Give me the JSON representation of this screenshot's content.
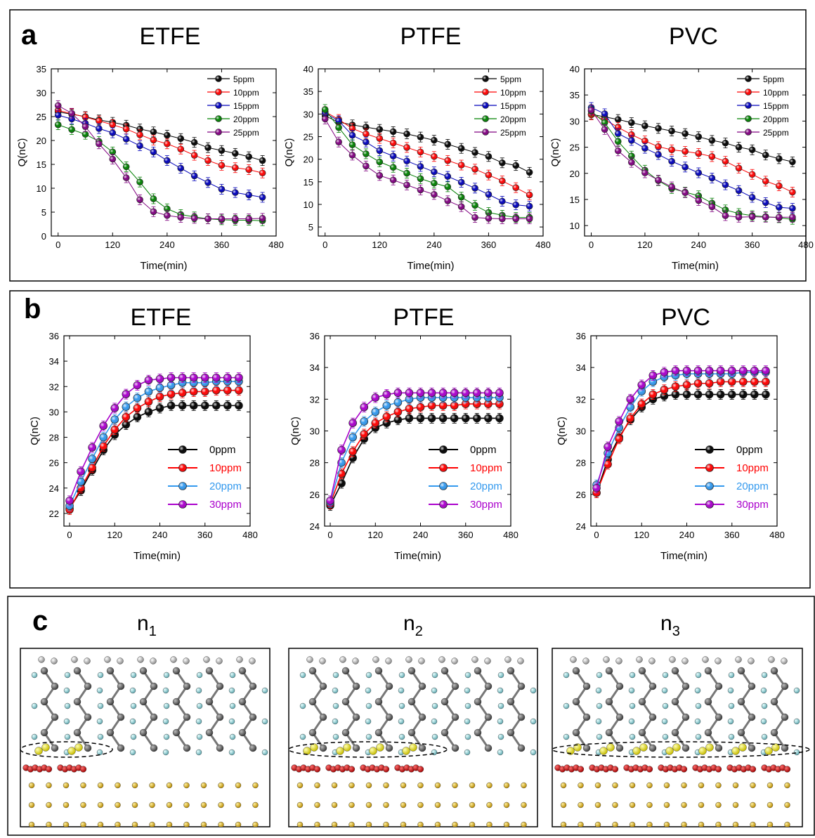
{
  "figure": {
    "panel_labels": [
      "a",
      "b",
      "c"
    ],
    "panel_c_titles": [
      {
        "base": "n",
        "sub": "1"
      },
      {
        "base": "n",
        "sub": "2"
      },
      {
        "base": "n",
        "sub": "3"
      }
    ],
    "panel_c_dashed_groups": [
      2,
      4,
      7
    ]
  },
  "chart_data": [
    {
      "type": "line",
      "panel": "a",
      "title": "ETFE",
      "xlabel": "Time(min)",
      "ylabel": "Q(nC)",
      "xlim": [
        -15,
        480
      ],
      "ylim": [
        0,
        35
      ],
      "xticks": [
        0,
        120,
        240,
        360,
        480
      ],
      "yticks": [
        0,
        5,
        10,
        15,
        20,
        25,
        30,
        35
      ],
      "legend_position": "top-right",
      "x": [
        0,
        30,
        60,
        90,
        120,
        150,
        180,
        210,
        240,
        270,
        300,
        330,
        360,
        390,
        420,
        450
      ],
      "series": [
        {
          "name": "5ppm",
          "color": "#000000",
          "values": [
            26,
            25.5,
            25,
            24.3,
            23.8,
            23.2,
            22.4,
            21.8,
            21.1,
            20.4,
            19.6,
            18.5,
            17.9,
            17.3,
            16.6,
            15.8
          ]
        },
        {
          "name": "10ppm",
          "color": "#ff0000",
          "values": [
            26.3,
            25.6,
            24.9,
            24.1,
            23.3,
            22.4,
            21.2,
            20.1,
            19.3,
            18.2,
            16.9,
            15.8,
            14.8,
            14.3,
            13.9,
            13.2
          ]
        },
        {
          "name": "15ppm",
          "color": "#0000bb",
          "values": [
            25.3,
            24.5,
            23.6,
            22.5,
            21.6,
            20.3,
            18.9,
            17.6,
            15.8,
            14.2,
            12.6,
            11.2,
            9.8,
            9.1,
            8.6,
            8.1
          ]
        },
        {
          "name": "20ppm",
          "color": "#008000",
          "values": [
            23.3,
            22.3,
            21.3,
            19.8,
            17.6,
            14.5,
            11.3,
            7.8,
            5.7,
            4.5,
            4.0,
            3.6,
            3.4,
            3.3,
            3.3,
            3.2
          ]
        },
        {
          "name": "25ppm",
          "color": "#800080",
          "values": [
            27.3,
            25.7,
            22.9,
            19.3,
            16.1,
            12.2,
            7.6,
            5.1,
            4.3,
            3.9,
            3.7,
            3.6,
            3.6,
            3.6,
            3.6,
            3.7
          ]
        }
      ]
    },
    {
      "type": "line",
      "panel": "a",
      "title": "PTFE",
      "xlabel": "Time(min)",
      "ylabel": "Q(nC)",
      "xlim": [
        -15,
        480
      ],
      "ylim": [
        3,
        40
      ],
      "xticks": [
        0,
        120,
        240,
        360,
        480
      ],
      "yticks": [
        5,
        10,
        15,
        20,
        25,
        30,
        35,
        40
      ],
      "legend_position": "top-right",
      "x": [
        0,
        30,
        60,
        90,
        120,
        150,
        180,
        210,
        240,
        270,
        300,
        330,
        360,
        390,
        420,
        450
      ],
      "series": [
        {
          "name": "5ppm",
          "color": "#000000",
          "values": [
            29.6,
            28.2,
            27.6,
            27.1,
            26.6,
            26.1,
            25.6,
            24.9,
            24.2,
            23.3,
            22.4,
            21.5,
            20.6,
            19.2,
            18.6,
            17.1
          ]
        },
        {
          "name": "10ppm",
          "color": "#ff0000",
          "values": [
            30.5,
            28.8,
            26.8,
            25.6,
            24.6,
            23.6,
            22.6,
            21.6,
            20.6,
            19.7,
            18.7,
            17.8,
            16.5,
            15.2,
            13.7,
            12.1
          ]
        },
        {
          "name": "15ppm",
          "color": "#0000bb",
          "values": [
            30.2,
            28.5,
            25.3,
            23.8,
            21.9,
            20.7,
            19.6,
            18.4,
            17.2,
            16.2,
            14.9,
            13.6,
            12.2,
            10.7,
            9.9,
            9.6
          ]
        },
        {
          "name": "20ppm",
          "color": "#008000",
          "values": [
            31,
            27,
            23.2,
            21.2,
            19.4,
            18.2,
            16.9,
            15.7,
            14.7,
            13.9,
            11.6,
            9.8,
            8.2,
            7.6,
            7.1,
            7.1
          ]
        },
        {
          "name": "25ppm",
          "color": "#800080",
          "values": [
            28.9,
            23.8,
            20.9,
            18.5,
            16.4,
            15.4,
            14.3,
            13.2,
            12.2,
            10.8,
            9.5,
            7.1,
            6.9,
            6.8,
            6.8,
            6.8
          ]
        }
      ]
    },
    {
      "type": "line",
      "panel": "a",
      "title": "PVC",
      "xlabel": "Time(min)",
      "ylabel": "Q(nC)",
      "xlim": [
        -15,
        480
      ],
      "ylim": [
        8,
        40
      ],
      "xticks": [
        0,
        120,
        240,
        360,
        480
      ],
      "yticks": [
        10,
        15,
        20,
        25,
        30,
        35,
        40
      ],
      "legend_position": "top-right",
      "x": [
        0,
        30,
        60,
        90,
        120,
        150,
        180,
        210,
        240,
        270,
        300,
        330,
        360,
        390,
        420,
        450
      ],
      "series": [
        {
          "name": "5ppm",
          "color": "#000000",
          "values": [
            31.3,
            30.8,
            30.3,
            29.7,
            29.1,
            28.6,
            28.1,
            27.6,
            27,
            26.3,
            25.8,
            25,
            24.5,
            23.5,
            22.8,
            22.2
          ]
        },
        {
          "name": "10ppm",
          "color": "#ff0000",
          "values": [
            31.2,
            30.3,
            28.8,
            27.4,
            26.2,
            25.1,
            24.5,
            24.2,
            23.8,
            23.2,
            22.3,
            21,
            19.8,
            18.5,
            17.6,
            16.4
          ]
        },
        {
          "name": "15ppm",
          "color": "#0000bb",
          "values": [
            32.6,
            31.4,
            27.6,
            26.3,
            24.8,
            23.6,
            22.3,
            21.2,
            20.1,
            19.1,
            17.8,
            16.7,
            15.4,
            14.4,
            13.5,
            13.3
          ]
        },
        {
          "name": "20ppm",
          "color": "#008000",
          "values": [
            31.9,
            29.7,
            26.1,
            23.3,
            20.6,
            18.6,
            17.1,
            16.4,
            15.7,
            14.3,
            13,
            12.3,
            11.9,
            11.7,
            11.5,
            11.2
          ]
        },
        {
          "name": "25ppm",
          "color": "#800080",
          "values": [
            32.1,
            28.4,
            24.3,
            22.1,
            20.1,
            18.7,
            17.4,
            16.3,
            14.8,
            13.6,
            11.9,
            11.6,
            11.7,
            11.6,
            11.6,
            11.6
          ]
        }
      ]
    },
    {
      "type": "line",
      "panel": "b",
      "title": "ETFE",
      "xlabel": "Time(min)",
      "ylabel": "Q(nC)",
      "xlim": [
        -15,
        480
      ],
      "ylim": [
        21,
        36
      ],
      "xticks": [
        0,
        120,
        240,
        360,
        480
      ],
      "yticks": [
        22,
        24,
        26,
        28,
        30,
        32,
        34,
        36
      ],
      "legend_position": "lower-right",
      "x": [
        0,
        30,
        60,
        90,
        120,
        150,
        180,
        210,
        240,
        270,
        300,
        330,
        360,
        390,
        420,
        450
      ],
      "series": [
        {
          "name": "0ppm",
          "color": "#000000",
          "values": [
            22.4,
            23.8,
            25.4,
            27,
            28.2,
            29,
            29.6,
            30,
            30.3,
            30.5,
            30.5,
            30.5,
            30.5,
            30.5,
            30.5,
            30.5
          ]
        },
        {
          "name": "10ppm",
          "color": "#ff0000",
          "values": [
            22.3,
            24,
            25.6,
            27.3,
            28.6,
            29.6,
            30.3,
            30.8,
            31.2,
            31.4,
            31.5,
            31.6,
            31.6,
            31.7,
            31.7,
            31.7
          ]
        },
        {
          "name": "20ppm",
          "color": "#3399ee",
          "values": [
            22.6,
            24.5,
            26.3,
            28,
            29.4,
            30.4,
            31.1,
            31.6,
            31.9,
            32.1,
            32.3,
            32.3,
            32.3,
            32.4,
            32.4,
            32.4
          ]
        },
        {
          "name": "30ppm",
          "color": "#aa00cc",
          "values": [
            23,
            25.3,
            27.2,
            28.9,
            30.3,
            31.4,
            32.1,
            32.5,
            32.6,
            32.7,
            32.7,
            32.7,
            32.7,
            32.7,
            32.7,
            32.7
          ]
        }
      ]
    },
    {
      "type": "line",
      "panel": "b",
      "title": "PTFE",
      "xlabel": "Time(min)",
      "ylabel": "Q(nC)",
      "xlim": [
        -15,
        480
      ],
      "ylim": [
        24,
        36
      ],
      "xticks": [
        0,
        120,
        240,
        360,
        480
      ],
      "yticks": [
        24,
        26,
        28,
        30,
        32,
        34,
        36
      ],
      "legend_position": "lower-right",
      "x": [
        0,
        30,
        60,
        90,
        120,
        150,
        180,
        210,
        240,
        270,
        300,
        330,
        360,
        390,
        420,
        450
      ],
      "series": [
        {
          "name": "0ppm",
          "color": "#000000",
          "values": [
            25.3,
            26.7,
            28.3,
            29.5,
            30.2,
            30.5,
            30.7,
            30.8,
            30.8,
            30.8,
            30.8,
            30.8,
            30.8,
            30.8,
            30.8,
            30.8
          ]
        },
        {
          "name": "10ppm",
          "color": "#ff0000",
          "values": [
            25.4,
            27.3,
            28.7,
            29.8,
            30.5,
            30.9,
            31.2,
            31.4,
            31.5,
            31.6,
            31.6,
            31.6,
            31.7,
            31.7,
            31.7,
            31.7
          ]
        },
        {
          "name": "20ppm",
          "color": "#3399ee",
          "values": [
            25.5,
            28,
            29.6,
            30.6,
            31.2,
            31.6,
            31.8,
            32,
            32.1,
            32.1,
            32.1,
            32.1,
            32.1,
            32.1,
            32.1,
            32.1
          ]
        },
        {
          "name": "30ppm",
          "color": "#aa00cc",
          "values": [
            25.6,
            28.8,
            30.5,
            31.5,
            32.1,
            32.3,
            32.4,
            32.4,
            32.4,
            32.4,
            32.4,
            32.4,
            32.4,
            32.4,
            32.4,
            32.4
          ]
        }
      ]
    },
    {
      "type": "line",
      "panel": "b",
      "title": "PVC",
      "xlabel": "Time(min)",
      "ylabel": "Q(nC)",
      "xlim": [
        -15,
        480
      ],
      "ylim": [
        24,
        36
      ],
      "xticks": [
        0,
        120,
        240,
        360,
        480
      ],
      "yticks": [
        24,
        26,
        28,
        30,
        32,
        34,
        36
      ],
      "legend_position": "lower-right",
      "x": [
        0,
        30,
        60,
        90,
        120,
        150,
        180,
        210,
        240,
        270,
        300,
        330,
        360,
        390,
        420,
        450
      ],
      "series": [
        {
          "name": "0ppm",
          "color": "#000000",
          "values": [
            26.1,
            28.2,
            29.6,
            30.7,
            31.5,
            32,
            32.2,
            32.3,
            32.3,
            32.3,
            32.3,
            32.3,
            32.3,
            32.3,
            32.3,
            32.3
          ]
        },
        {
          "name": "10ppm",
          "color": "#ff0000",
          "values": [
            26.1,
            27.9,
            29.5,
            30.8,
            31.7,
            32.3,
            32.6,
            32.8,
            32.9,
            33,
            33,
            33.1,
            33.1,
            33.1,
            33.1,
            33.1
          ]
        },
        {
          "name": "20ppm",
          "color": "#3399ee",
          "values": [
            26.6,
            28.6,
            30.2,
            31.5,
            32.5,
            33.1,
            33.4,
            33.5,
            33.6,
            33.6,
            33.6,
            33.6,
            33.6,
            33.7,
            33.7,
            33.7
          ]
        },
        {
          "name": "30ppm",
          "color": "#aa00cc",
          "values": [
            26.4,
            29,
            30.6,
            32,
            32.9,
            33.5,
            33.7,
            33.8,
            33.8,
            33.8,
            33.8,
            33.8,
            33.8,
            33.8,
            33.8,
            33.8
          ]
        }
      ]
    }
  ]
}
